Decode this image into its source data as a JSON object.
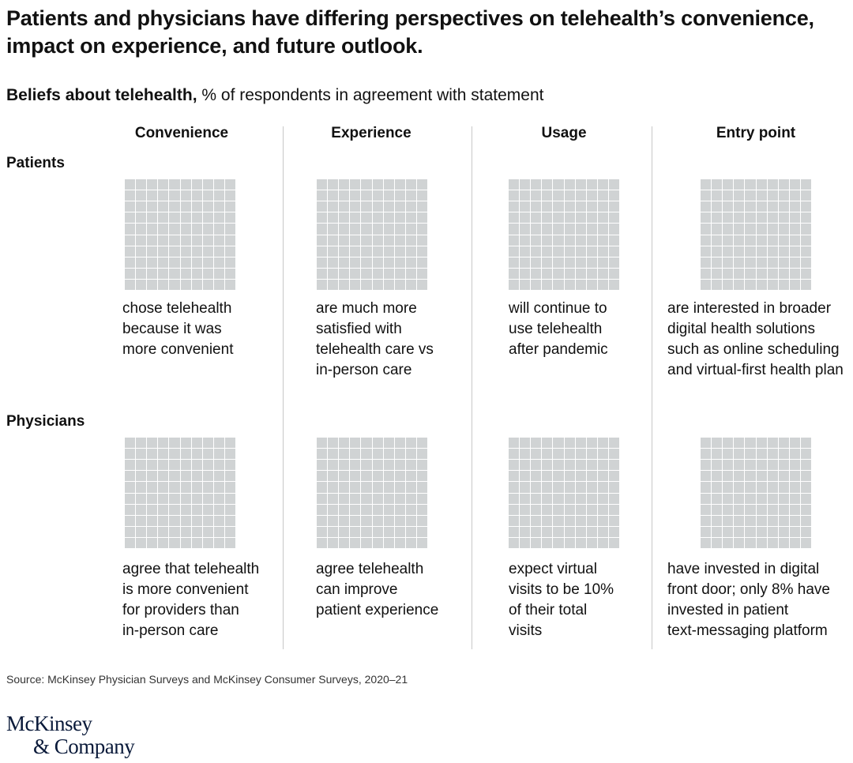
{
  "title": "Patients and physicians have differing perspectives on telehealth’s convenience, impact on experience, and future outlook.",
  "subtitle": {
    "bold": "Beliefs about telehealth,",
    "rest": " % of respondents in agreement with statement"
  },
  "colors": {
    "cell_empty": "#d0d3d4",
    "divider": "#c8c8c8"
  },
  "chart_data": {
    "type": "waffle",
    "title": "Beliefs about telehealth",
    "unit": "% of respondents in agreement with statement",
    "columns": [
      "Convenience",
      "Experience",
      "Usage",
      "Entry point"
    ],
    "rows": [
      "Patients",
      "Physicians"
    ],
    "grid": "10x10",
    "cells": [
      {
        "row": "Patients",
        "column": "Convenience",
        "value": null,
        "description": "chose telehealth\nbecause it was\nmore convenient"
      },
      {
        "row": "Patients",
        "column": "Experience",
        "value": null,
        "description": "are much more\nsatisfied with\ntelehealth care vs\nin-person care"
      },
      {
        "row": "Patients",
        "column": "Usage",
        "value": null,
        "description": "will continue to\nuse telehealth\nafter pandemic"
      },
      {
        "row": "Patients",
        "column": "Entry point",
        "value": null,
        "description": "are interested in broader\ndigital health solutions\nsuch as online scheduling\nand virtual-first health plan"
      },
      {
        "row": "Physicians",
        "column": "Convenience",
        "value": null,
        "description": "agree that telehealth\nis more convenient\nfor providers than\nin-person care"
      },
      {
        "row": "Physicians",
        "column": "Experience",
        "value": null,
        "description": "agree telehealth\ncan improve\npatient experience"
      },
      {
        "row": "Physicians",
        "column": "Usage",
        "value": null,
        "description": "expect virtual\nvisits to be 10%\nof their total\nvisits"
      },
      {
        "row": "Physicians",
        "column": "Entry point",
        "value": null,
        "description": "have invested in digital\nfront door; only 8% have\ninvested in patient\ntext-messaging platform"
      }
    ]
  },
  "source": "Source: McKinsey Physician Surveys and McKinsey Consumer Surveys, 2020–21",
  "logo": {
    "line1": "McKinsey",
    "line2": "& Company"
  }
}
